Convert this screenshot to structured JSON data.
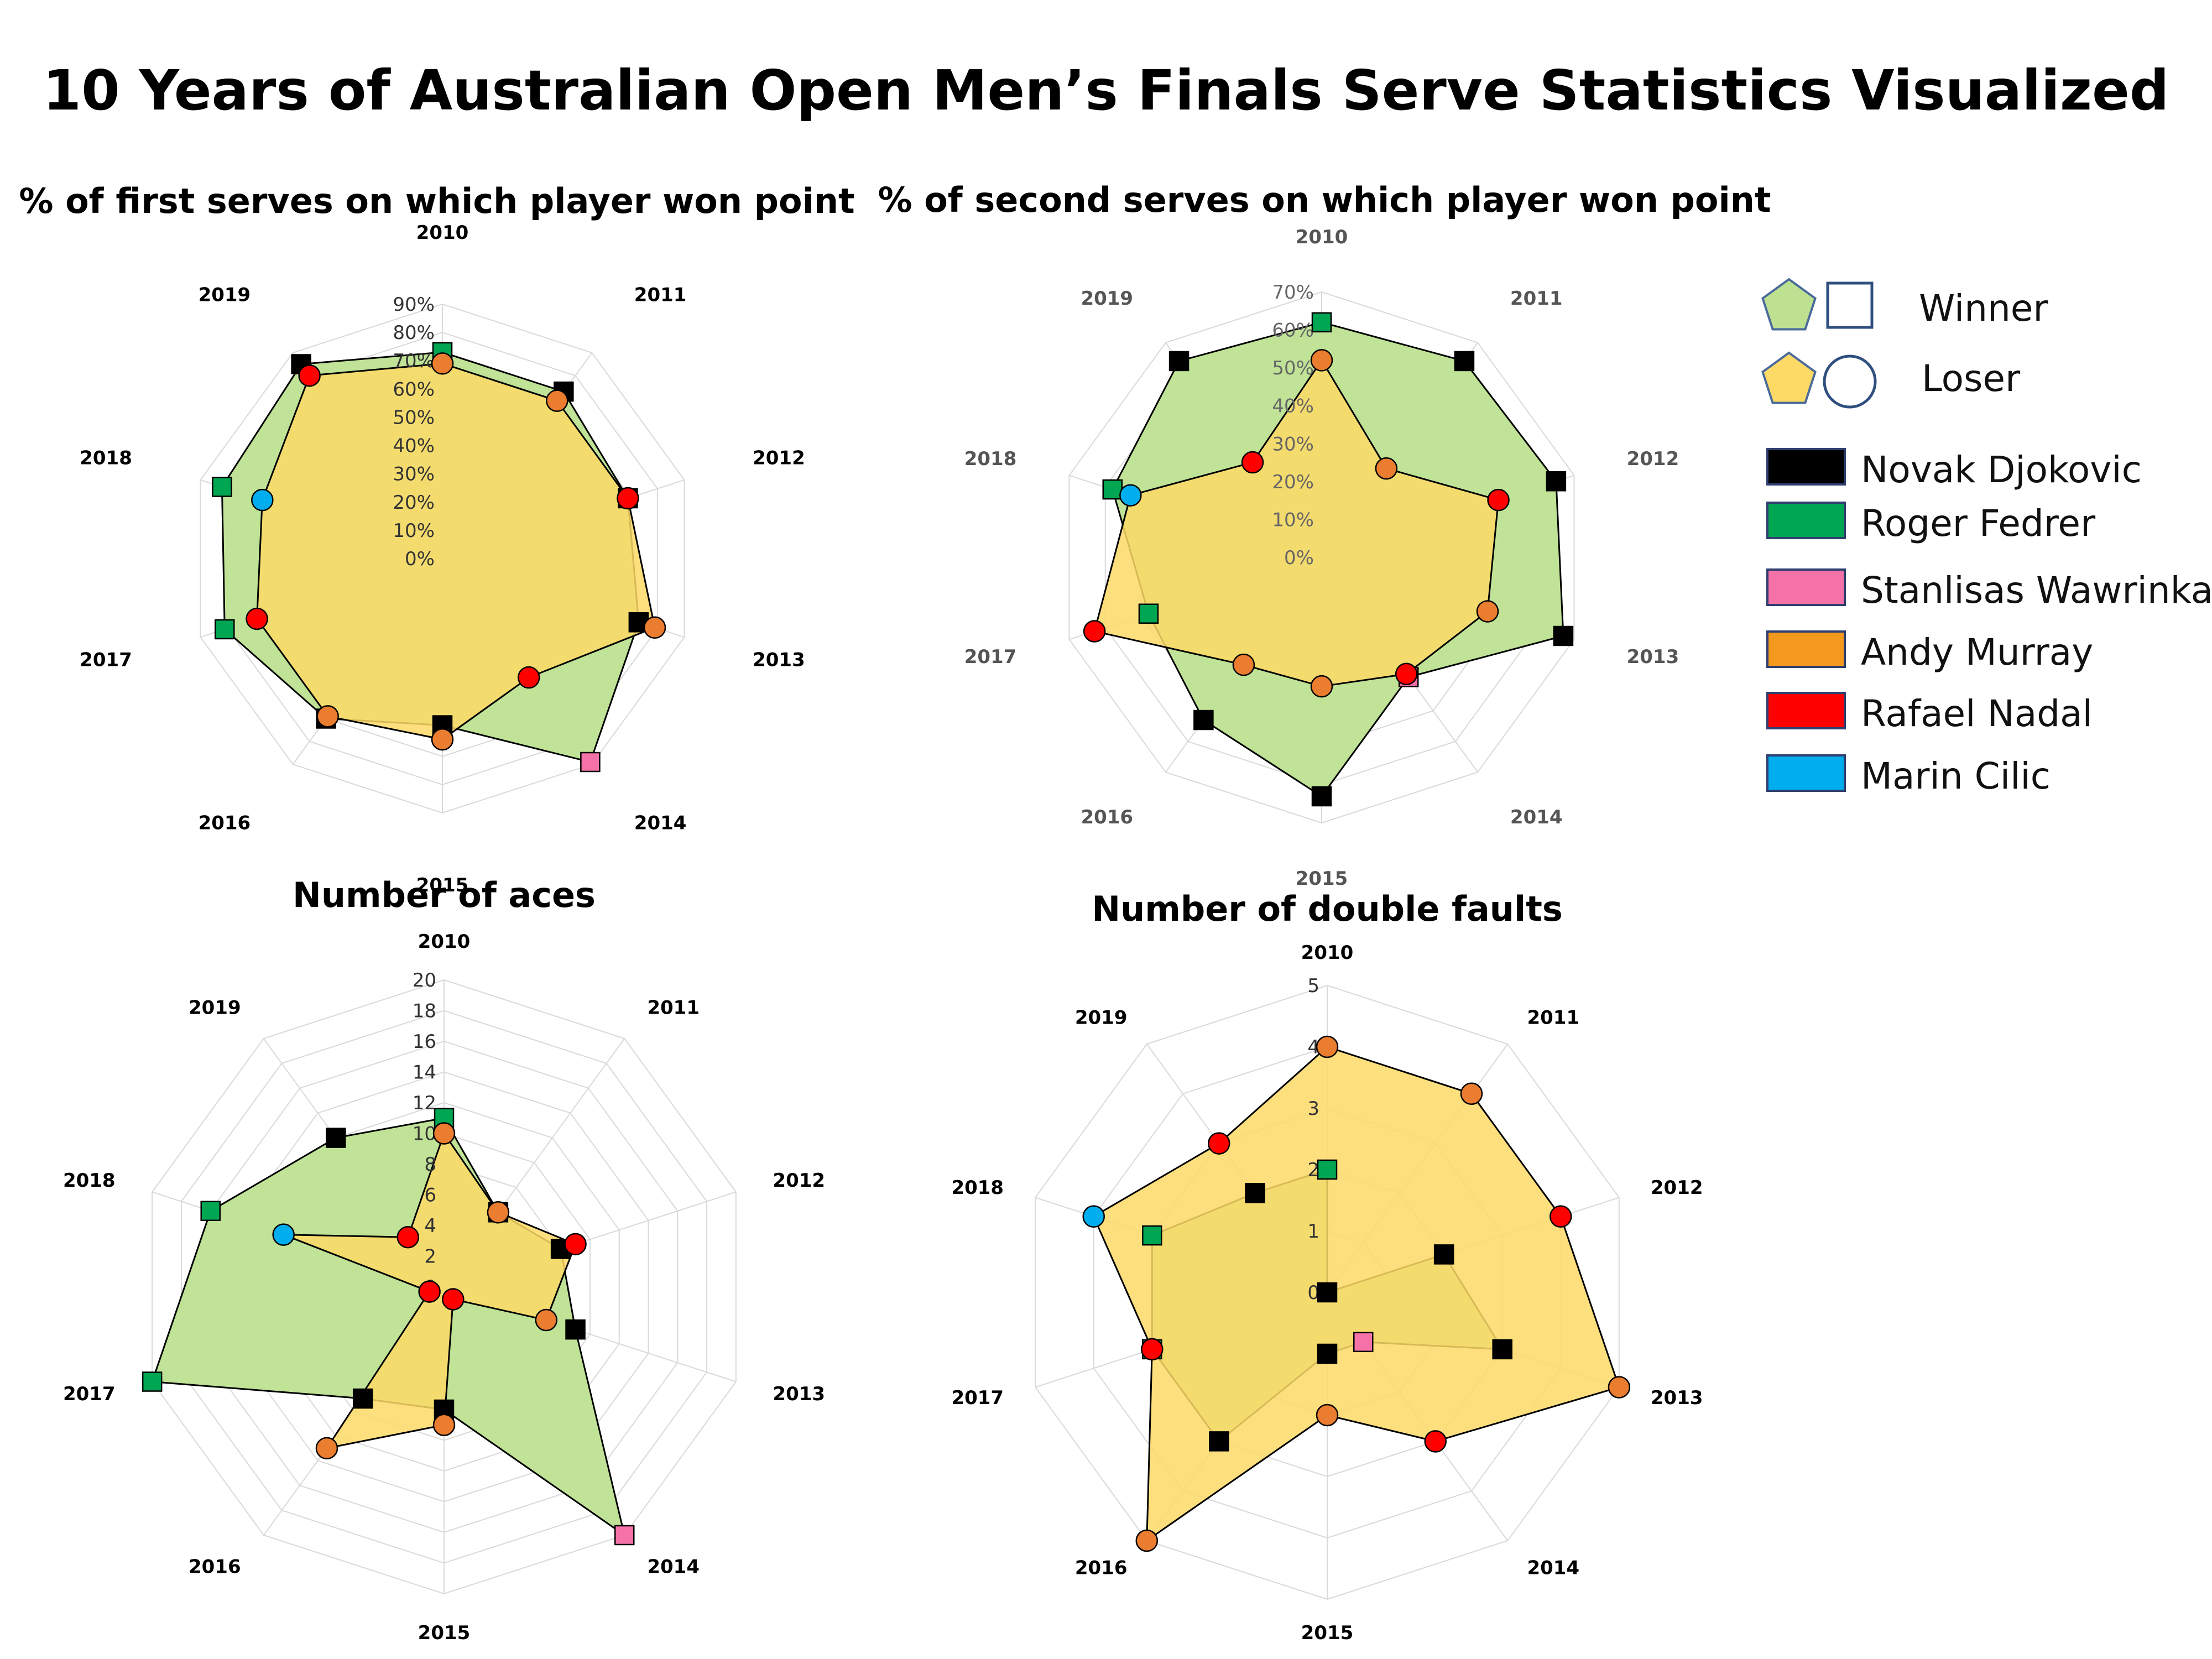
{
  "title": "10 Years of Australian Open Men’s Finals Serve Statistics Visualized",
  "legend": {
    "winner_label": "Winner",
    "loser_label": "Loser",
    "winner_fill": "#bde191",
    "loser_fill": "#fdd966",
    "players": [
      {
        "name": "Novak Djokovic",
        "color": "#000000"
      },
      {
        "name": "Roger Fedrer",
        "color": "#00a651"
      },
      {
        "name": "Stanlisas Wawrinka",
        "color": "#f472a8"
      },
      {
        "name": "Andy Murray",
        "color": "#f39a1e"
      },
      {
        "name": "Rafael Nadal",
        "color": "#ff0000"
      },
      {
        "name": "Marin Cilic",
        "color": "#00aeef"
      }
    ]
  },
  "marker_colors": {
    "Novak Djokovic": "#000000",
    "Roger Fedrer": "#00a651",
    "Stanlisas Wawrinka": "#f472a8",
    "Andy Murray": "#ea7d2f",
    "Rafael Nadal": "#ff0000",
    "Marin Cilic": "#00aeef"
  },
  "chart_data": [
    {
      "type": "radar",
      "title": "% of first serves on which player won point",
      "categories": [
        "2010",
        "2011",
        "2012",
        "2013",
        "2014",
        "2015",
        "2016",
        "2017",
        "2018",
        "2019"
      ],
      "ticks": [
        "0%",
        "10%",
        "20%",
        "30%",
        "40%",
        "50%",
        "60%",
        "70%",
        "80%",
        "90%"
      ],
      "ylim": [
        0,
        90
      ],
      "winner_players": [
        "Roger Fedrer",
        "Novak Djokovic",
        "Novak Djokovic",
        "Novak Djokovic",
        "Stanlisas Wawrinka",
        "Novak Djokovic",
        "Novak Djokovic",
        "Roger Fedrer",
        "Roger Fedrer",
        "Novak Djokovic"
      ],
      "loser_players": [
        "Andy Murray",
        "Andy Murray",
        "Rafael Nadal",
        "Andy Murray",
        "Rafael Nadal",
        "Andy Murray",
        "Andy Murray",
        "Rafael Nadal",
        "Marin Cilic",
        "Rafael Nadal"
      ],
      "series": [
        {
          "name": "Winner",
          "values": [
            73,
            73,
            69,
            73,
            89,
            59,
            70,
            81,
            82,
            85
          ]
        },
        {
          "name": "Loser",
          "values": [
            69,
            69,
            69,
            79,
            52,
            64,
            69,
            69,
            67,
            80
          ]
        }
      ]
    },
    {
      "type": "radar",
      "title": "% of second serves on which player won point",
      "categories": [
        "2010",
        "2011",
        "2012",
        "2013",
        "2014",
        "2015",
        "2016",
        "2017",
        "2018",
        "2019"
      ],
      "ticks": [
        "0%",
        "10%",
        "20%",
        "30%",
        "40%",
        "50%",
        "60%",
        "70%"
      ],
      "ylim": [
        0,
        70
      ],
      "winner_players": [
        "Roger Fedrer",
        "Novak Djokovic",
        "Novak Djokovic",
        "Novak Djokovic",
        "Stanlisas Wawrinka",
        "Novak Djokovic",
        "Novak Djokovic",
        "Roger Fedrer",
        "Roger Fedrer",
        "Novak Djokovic"
      ],
      "loser_players": [
        "Andy Murray",
        "Andy Murray",
        "Rafael Nadal",
        "Andy Murray",
        "Rafael Nadal",
        "Andy Murray",
        "Andy Murray",
        "Rafael Nadal",
        "Marin Cilic",
        "Rafael Nadal"
      ],
      "series": [
        {
          "name": "Winner",
          "values": [
            62,
            64,
            65,
            67,
            39,
            63,
            53,
            48,
            58,
            64
          ]
        },
        {
          "name": "Loser",
          "values": [
            52,
            29,
            49,
            46,
            38,
            34,
            35,
            63,
            53,
            31
          ]
        }
      ]
    },
    {
      "type": "radar",
      "title": "Number of aces",
      "categories": [
        "2010",
        "2011",
        "2012",
        "2013",
        "2014",
        "2015",
        "2016",
        "2017",
        "2018",
        "2019"
      ],
      "ticks": [
        "0",
        "2",
        "4",
        "6",
        "8",
        "10",
        "12",
        "14",
        "16",
        "18",
        "20"
      ],
      "ylim": [
        0,
        20
      ],
      "winner_players": [
        "Roger Fedrer",
        "Novak Djokovic",
        "Novak Djokovic",
        "Novak Djokovic",
        "Stanlisas Wawrinka",
        "Novak Djokovic",
        "Novak Djokovic",
        "Roger Fedrer",
        "Roger Fedrer",
        "Novak Djokovic"
      ],
      "loser_players": [
        "Andy Murray",
        "Andy Murray",
        "Rafael Nadal",
        "Andy Murray",
        "Rafael Nadal",
        "Andy Murray",
        "Andy Murray",
        "Rafael Nadal",
        "Marin Cilic",
        "Rafael Nadal"
      ],
      "series": [
        {
          "name": "Winner",
          "values": [
            11,
            6,
            8,
            9,
            20,
            8,
            9,
            20,
            16,
            12
          ]
        },
        {
          "name": "Loser",
          "values": [
            10,
            6,
            9,
            7,
            1,
            9,
            13,
            1,
            11,
            4
          ]
        }
      ]
    },
    {
      "type": "radar",
      "title": "Number of double faults",
      "categories": [
        "2010",
        "2011",
        "2012",
        "2013",
        "2014",
        "2015",
        "2016",
        "2017",
        "2018",
        "2019"
      ],
      "ticks": [
        "0",
        "1",
        "2",
        "3",
        "4",
        "5"
      ],
      "ylim": [
        0,
        5
      ],
      "winner_players": [
        "Roger Fedrer",
        "Novak Djokovic",
        "Novak Djokovic",
        "Novak Djokovic",
        "Stanlisas Wawrinka",
        "Novak Djokovic",
        "Novak Djokovic",
        "Roger Fedrer",
        "Roger Fedrer",
        "Novak Djokovic"
      ],
      "loser_players": [
        "Andy Murray",
        "Andy Murray",
        "Rafael Nadal",
        "Andy Murray",
        "Rafael Nadal",
        "Andy Murray",
        "Andy Murray",
        "Rafael Nadal",
        "Marin Cilic",
        "Rafael Nadal"
      ],
      "series": [
        {
          "name": "Winner",
          "values": [
            2,
            0,
            2,
            3,
            1,
            1,
            3,
            3,
            3,
            2
          ]
        },
        {
          "name": "Loser",
          "values": [
            4,
            4,
            4,
            5,
            3,
            2,
            5,
            3,
            4,
            3
          ]
        }
      ]
    }
  ]
}
